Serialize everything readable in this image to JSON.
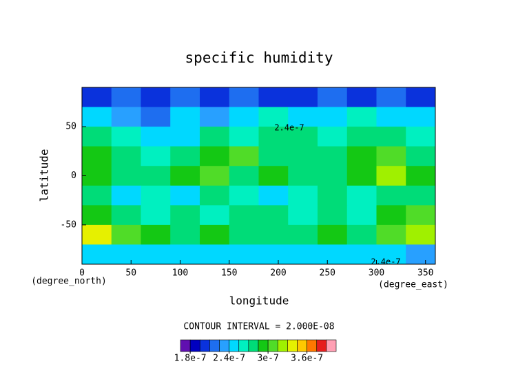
{
  "chart_data": {
    "type": "heatmap",
    "title": "specific humidity",
    "x_label": "longitude",
    "y_label": "latitude",
    "x_units": "(degree_east)",
    "y_units": "(degree_north)",
    "xlim": [
      0,
      360
    ],
    "ylim": [
      -90,
      90
    ],
    "xticks": [
      0,
      50,
      100,
      150,
      200,
      250,
      300,
      350
    ],
    "yticks": [
      -50,
      0,
      50
    ],
    "lon": [
      15,
      45,
      75,
      105,
      135,
      165,
      195,
      225,
      255,
      285,
      315,
      345
    ],
    "lat": [
      80,
      60,
      40,
      20,
      0,
      -20,
      -40,
      -60,
      -80
    ],
    "z": [
      [
        2e-07,
        2.1e-07,
        1.95e-07,
        2.1e-07,
        2e-07,
        2.1e-07,
        1.95e-07,
        2.05e-07,
        2.1e-07,
        2e-07,
        2.1e-07,
        2.05e-07
      ],
      [
        2.4e-07,
        2.3e-07,
        2.2e-07,
        2.5e-07,
        2.3e-07,
        2.4e-07,
        2.6e-07,
        2.5e-07,
        2.4e-07,
        2.6e-07,
        2.5e-07,
        2.4e-07
      ],
      [
        2.8e-07,
        2.6e-07,
        2.4e-07,
        2.5e-07,
        2.7e-07,
        2.6e-07,
        2.7e-07,
        2.8e-07,
        2.6e-07,
        2.8e-07,
        2.7e-07,
        2.6e-07
      ],
      [
        2.9e-07,
        2.7e-07,
        2.6e-07,
        2.8e-07,
        2.9e-07,
        3e-07,
        2.8e-07,
        2.7e-07,
        2.8e-07,
        2.9e-07,
        3.1e-07,
        2.8e-07
      ],
      [
        2.9e-07,
        2.8e-07,
        2.7e-07,
        2.9e-07,
        3e-07,
        2.8e-07,
        2.9e-07,
        2.7e-07,
        2.8e-07,
        2.9e-07,
        3.2e-07,
        2.9e-07
      ],
      [
        2.7e-07,
        2.5e-07,
        2.6e-07,
        2.5e-07,
        2.7e-07,
        2.6e-07,
        2.5e-07,
        2.6e-07,
        2.7e-07,
        2.6e-07,
        2.8e-07,
        2.7e-07
      ],
      [
        2.9e-07,
        2.7e-07,
        2.6e-07,
        2.7e-07,
        2.6e-07,
        2.7e-07,
        2.8e-07,
        2.6e-07,
        2.7e-07,
        2.6e-07,
        2.9e-07,
        3e-07
      ],
      [
        3.3e-07,
        3.1e-07,
        2.9e-07,
        2.8e-07,
        2.9e-07,
        2.8e-07,
        2.7e-07,
        2.8e-07,
        2.9e-07,
        2.8e-07,
        3e-07,
        3.2e-07
      ],
      [
        2.5e-07,
        2.4e-07,
        2.5e-07,
        2.4e-07,
        2.4e-07,
        2.5e-07,
        2.5e-07,
        2.4e-07,
        2.4e-07,
        2.5e-07,
        2.4e-07,
        2.3e-07
      ]
    ],
    "contour_note": "CONTOUR INTERVAL = 2.000E-08",
    "annotations": [
      "2.4e-7",
      "2.4e-7"
    ],
    "colorbar": {
      "bounds": [
        1.65e-07,
        1.8e-07,
        1.95e-07,
        2.1e-07,
        2.25e-07,
        2.4e-07,
        2.55e-07,
        2.7e-07,
        2.85e-07,
        3e-07,
        3.15e-07,
        3.3e-07,
        3.45e-07,
        3.6e-07,
        3.75e-07,
        3.9e-07,
        4.05e-07
      ],
      "colors": [
        "#6010b0",
        "#0000c0",
        "#0a32dc",
        "#1e6ef0",
        "#28a0ff",
        "#00d8ff",
        "#00f0c0",
        "#00dc78",
        "#14c814",
        "#50dc28",
        "#a0f000",
        "#e6f000",
        "#ffc800",
        "#ff7800",
        "#e61e1e",
        "#ffa0b4"
      ],
      "ticks": [
        1.8e-07,
        2.4e-07,
        3e-07,
        3.6e-07
      ]
    }
  }
}
